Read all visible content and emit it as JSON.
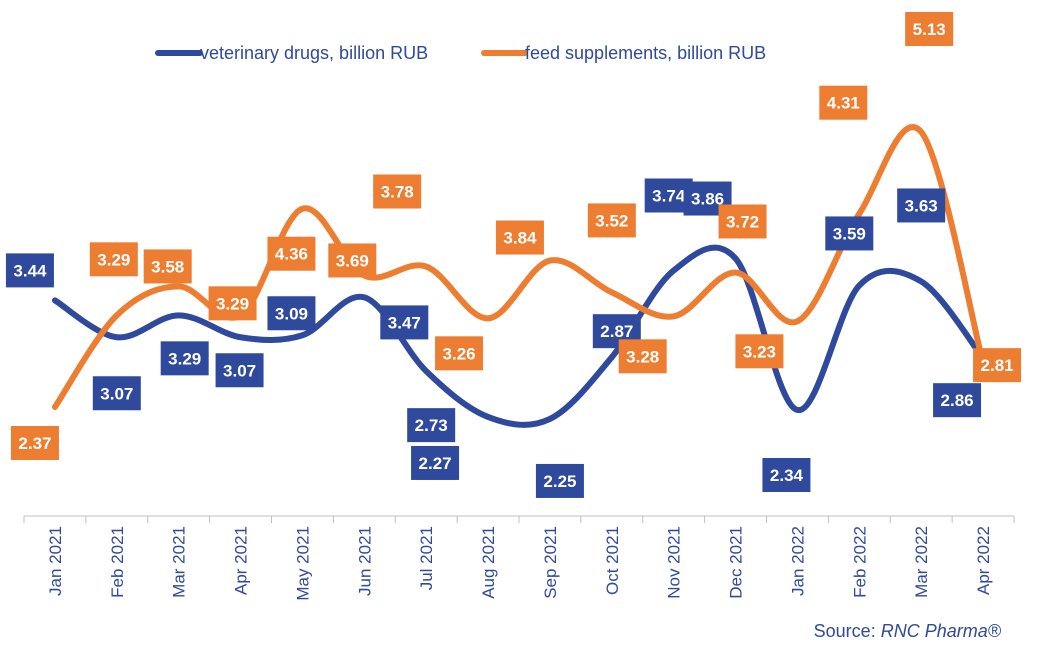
{
  "chart_data": {
    "type": "line",
    "categories": [
      "Jan 2021",
      "Feb 2021",
      "Mar 2021",
      "Apr 2021",
      "May 2021",
      "Jun 2021",
      "Jul 2021",
      "Aug 2021",
      "Sep 2021",
      "Oct 2021",
      "Nov 2021",
      "Dec 2021",
      "Jan 2022",
      "Feb 2022",
      "Mar 2022",
      "Apr 2022"
    ],
    "series": [
      {
        "name": "veterinary drugs, billion RUB",
        "color": "#2f4a9c",
        "values": [
          3.44,
          3.07,
          3.29,
          3.07,
          3.09,
          3.47,
          2.73,
          2.27,
          2.25,
          2.87,
          3.74,
          3.86,
          2.34,
          3.59,
          3.63,
          2.86
        ],
        "labels": [
          "3.44",
          "3.07",
          "3.29",
          "3.07",
          "3.09",
          "3.47",
          "2.73",
          "2.27",
          "2.25",
          "2.87",
          "3.74",
          "3.86",
          "2.34",
          "3.59",
          "3.63",
          "2.86"
        ]
      },
      {
        "name": "feed supplements, billion RUB",
        "color": "#ed7d31",
        "values": [
          2.37,
          3.29,
          3.58,
          3.29,
          4.36,
          3.69,
          3.78,
          3.26,
          3.84,
          3.52,
          3.28,
          3.72,
          3.23,
          4.31,
          5.13,
          2.81
        ],
        "labels": [
          "2.37",
          "3.29",
          "3.58",
          "3.29",
          "4.36",
          "3.69",
          "3.78",
          "3.26",
          "3.84",
          "3.52",
          "3.28",
          "3.72",
          "3.23",
          "4.31",
          "5.13",
          "2.81"
        ]
      }
    ],
    "legend_position": "top",
    "grid": false,
    "smooth": true
  },
  "source": {
    "prefix": "Source: ",
    "brand": "RNC Pharma®"
  }
}
